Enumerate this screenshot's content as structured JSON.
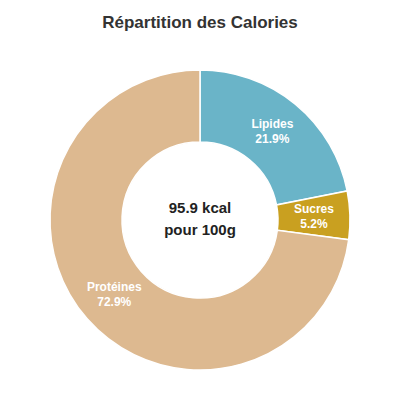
{
  "chart_data": {
    "type": "pie",
    "title": "Répartition des Calories",
    "categories": [
      "Lipides",
      "Sucres",
      "Protéines"
    ],
    "values": [
      21.9,
      5.2,
      72.9
    ],
    "value_labels": [
      "21.9%",
      "5.2%",
      "72.9%"
    ],
    "data_labels": true,
    "colors": [
      "#6ab4c8",
      "#c9a020",
      "#ddb990"
    ],
    "annotations": [
      "95.9 kcal",
      "pour 100g"
    ]
  }
}
